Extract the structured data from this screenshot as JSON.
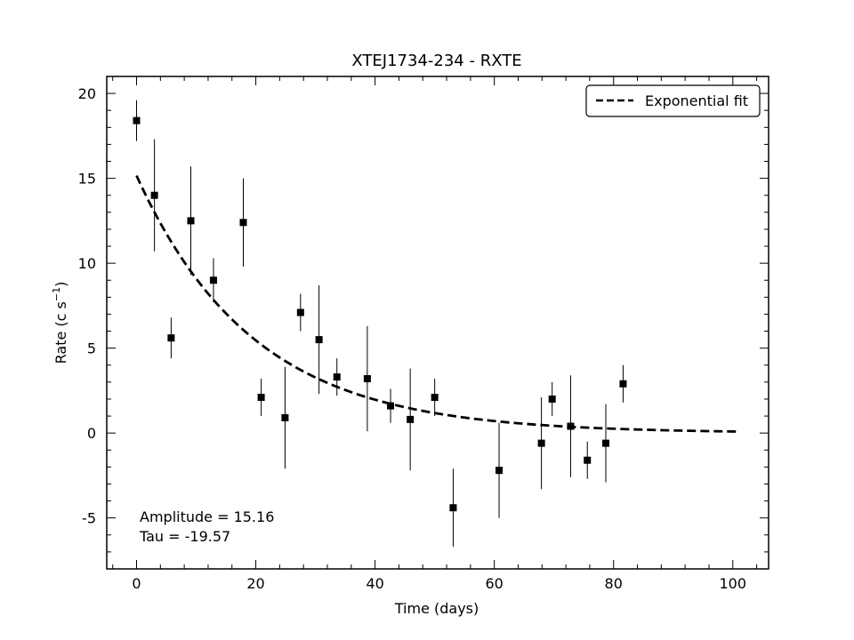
{
  "chart_data": {
    "type": "scatter",
    "title": "XTEJ1734-234 - RXTE",
    "xlabel": "Time (days)",
    "ylabel": "Rate (c s",
    "ylabel_sup": "−1",
    "ylabel_close": ")",
    "xlim": [
      -5,
      106
    ],
    "ylim": [
      -8,
      21
    ],
    "xticks": [
      0,
      20,
      40,
      60,
      80,
      100
    ],
    "yticks": [
      -5,
      0,
      5,
      10,
      15,
      20
    ],
    "xtick_labels": [
      "0",
      "20",
      "40",
      "60",
      "80",
      "100"
    ],
    "ytick_labels": [
      "-5",
      "0",
      "5",
      "10",
      "15",
      "20"
    ],
    "grid": false,
    "legend": {
      "placement": "top-right",
      "entries": [
        "Exponential fit"
      ]
    },
    "annotations": [
      "Amplitude = 15.16",
      "Tau = -19.57"
    ],
    "fit": {
      "amplitude": 15.16,
      "tau": -19.57,
      "x_range": [
        0,
        101
      ],
      "style": "dashed"
    },
    "series": [
      {
        "marker": "square",
        "points": [
          {
            "x": 0.0,
            "y": 18.4,
            "err": 1.2
          },
          {
            "x": 3.0,
            "y": 14.0,
            "err": 3.3
          },
          {
            "x": 5.8,
            "y": 5.6,
            "err": 1.2
          },
          {
            "x": 9.1,
            "y": 12.5,
            "err": 3.2
          },
          {
            "x": 12.9,
            "y": 9.0,
            "err": 1.3
          },
          {
            "x": 17.9,
            "y": 12.4,
            "err": 2.6
          },
          {
            "x": 20.9,
            "y": 2.1,
            "err": 1.1
          },
          {
            "x": 24.9,
            "y": 0.9,
            "err": 3.0
          },
          {
            "x": 27.5,
            "y": 7.1,
            "err": 1.1
          },
          {
            "x": 30.6,
            "y": 5.5,
            "err": 3.2
          },
          {
            "x": 33.6,
            "y": 3.3,
            "err": 1.1
          },
          {
            "x": 38.7,
            "y": 3.2,
            "err": 3.1
          },
          {
            "x": 42.6,
            "y": 1.6,
            "err": 1.0
          },
          {
            "x": 45.9,
            "y": 0.8,
            "err": 3.0
          },
          {
            "x": 50.0,
            "y": 2.1,
            "err": 1.1
          },
          {
            "x": 53.1,
            "y": -4.4,
            "err": 2.3
          },
          {
            "x": 60.8,
            "y": -2.2,
            "err": 2.8
          },
          {
            "x": 67.9,
            "y": -0.6,
            "err": 2.7
          },
          {
            "x": 69.7,
            "y": 2.0,
            "err": 1.0
          },
          {
            "x": 72.8,
            "y": 0.4,
            "err": 3.0
          },
          {
            "x": 75.6,
            "y": -1.6,
            "err": 1.1
          },
          {
            "x": 78.7,
            "y": -0.6,
            "err": 2.3
          },
          {
            "x": 81.6,
            "y": 2.9,
            "err": 1.1
          }
        ]
      }
    ]
  }
}
